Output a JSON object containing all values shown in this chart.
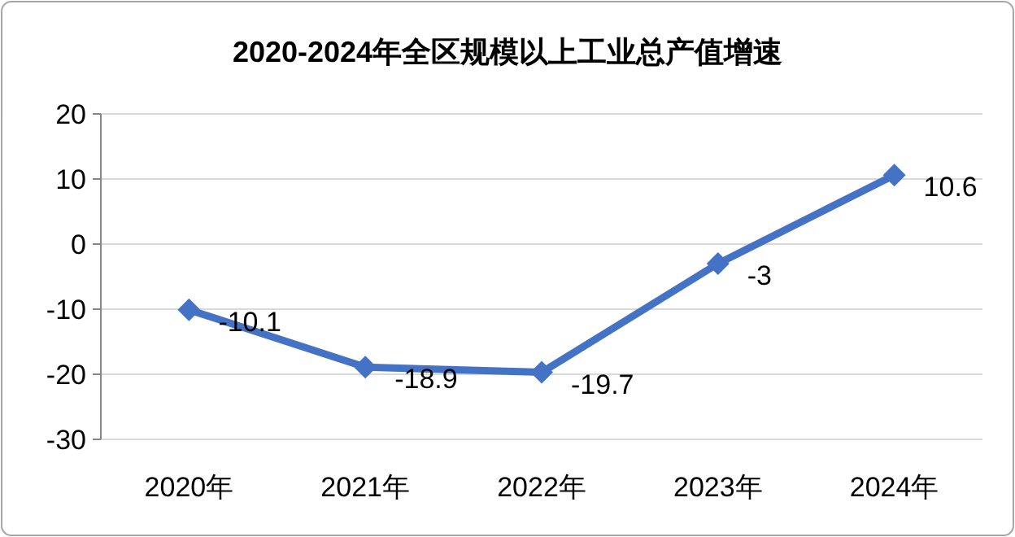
{
  "chart_data": {
    "type": "line",
    "title": "2020-2024年全区规模以上工业总产值增速",
    "categories": [
      "2020年",
      "2021年",
      "2022年",
      "2023年",
      "2024年"
    ],
    "values": [
      -10.1,
      -18.9,
      -19.7,
      -3,
      10.6
    ],
    "color": "#4472c4",
    "ylim": [
      -30,
      20
    ],
    "yticks": [
      -30,
      -20,
      -10,
      0,
      10,
      20
    ],
    "grid": "y",
    "marker": "diamond",
    "line_style": "solid",
    "data_labels": true
  }
}
